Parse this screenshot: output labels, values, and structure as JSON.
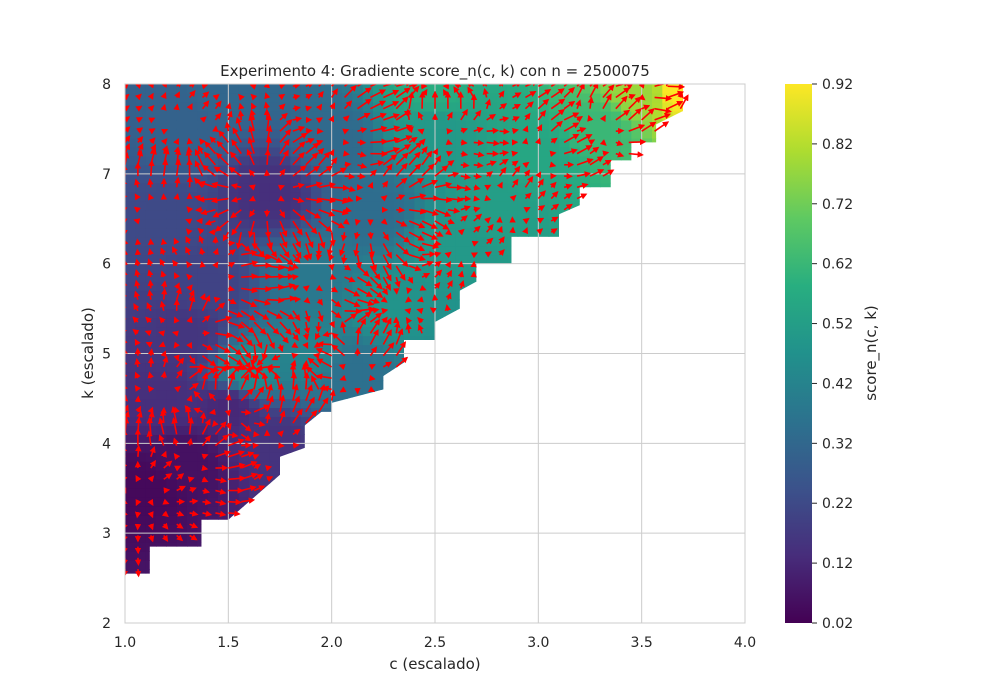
{
  "chart_data": {
    "type": "heatmap",
    "title": "Experimento 4: Gradiente score_n(c, k) con n = 2500075",
    "xlabel": "c (escalado)",
    "ylabel": "k (escalado)",
    "colorbar_label": "score_n(c, k)",
    "colormap": "viridis",
    "xlim": [
      1.0,
      4.0
    ],
    "ylim": [
      2,
      8
    ],
    "x_ticks": [
      "1.0",
      "1.5",
      "2.0",
      "2.5",
      "3.0",
      "3.5",
      "4.0"
    ],
    "y_ticks": [
      "2",
      "3",
      "4",
      "5",
      "6",
      "7",
      "8"
    ],
    "colorbar_range": [
      0.02,
      0.92
    ],
    "colorbar_ticks": [
      "0.02",
      "0.12",
      "0.22",
      "0.32",
      "0.42",
      "0.52",
      "0.62",
      "0.72",
      "0.82",
      "0.92"
    ],
    "grid": true,
    "arrow_color": "#ff0000",
    "region_boundary_c_vs_k": [
      [
        1.0,
        2.55
      ],
      [
        1.12,
        2.55
      ],
      [
        1.12,
        2.85
      ],
      [
        1.37,
        2.85
      ],
      [
        1.37,
        3.15
      ],
      [
        1.5,
        3.15
      ],
      [
        1.75,
        3.65
      ],
      [
        1.75,
        3.85
      ],
      [
        1.87,
        3.95
      ],
      [
        1.87,
        4.2
      ],
      [
        1.95,
        4.35
      ],
      [
        2.0,
        4.35
      ],
      [
        2.0,
        4.45
      ],
      [
        2.25,
        4.6
      ],
      [
        2.25,
        4.75
      ],
      [
        2.35,
        4.9
      ],
      [
        2.35,
        5.15
      ],
      [
        2.5,
        5.15
      ],
      [
        2.5,
        5.35
      ],
      [
        2.62,
        5.5
      ],
      [
        2.62,
        5.7
      ],
      [
        2.7,
        5.8
      ],
      [
        2.7,
        6.0
      ],
      [
        2.87,
        6.0
      ],
      [
        2.87,
        6.3
      ],
      [
        3.1,
        6.3
      ],
      [
        3.1,
        6.55
      ],
      [
        3.2,
        6.65
      ],
      [
        3.2,
        6.85
      ],
      [
        3.35,
        6.85
      ],
      [
        3.35,
        7.15
      ],
      [
        3.45,
        7.15
      ],
      [
        3.45,
        7.35
      ],
      [
        3.57,
        7.35
      ],
      [
        3.57,
        7.55
      ],
      [
        3.7,
        7.7
      ],
      [
        3.7,
        8.0
      ],
      [
        1.0,
        8.0
      ]
    ],
    "score_samples": [
      {
        "c": 1.1,
        "k": 3.5,
        "score": 0.04
      },
      {
        "c": 1.3,
        "k": 3.8,
        "score": 0.06
      },
      {
        "c": 1.2,
        "k": 4.5,
        "score": 0.14
      },
      {
        "c": 1.5,
        "k": 4.4,
        "score": 0.12
      },
      {
        "c": 1.7,
        "k": 4.0,
        "score": 0.15
      },
      {
        "c": 1.6,
        "k": 4.8,
        "score": 0.45
      },
      {
        "c": 1.3,
        "k": 5.2,
        "score": 0.16
      },
      {
        "c": 1.9,
        "k": 5.0,
        "score": 0.42
      },
      {
        "c": 2.1,
        "k": 4.8,
        "score": 0.35
      },
      {
        "c": 1.4,
        "k": 5.8,
        "score": 0.2
      },
      {
        "c": 1.9,
        "k": 5.9,
        "score": 0.38
      },
      {
        "c": 2.3,
        "k": 5.5,
        "score": 0.48
      },
      {
        "c": 1.2,
        "k": 6.5,
        "score": 0.22
      },
      {
        "c": 1.7,
        "k": 6.8,
        "score": 0.14
      },
      {
        "c": 2.2,
        "k": 6.6,
        "score": 0.34
      },
      {
        "c": 2.6,
        "k": 6.2,
        "score": 0.5
      },
      {
        "c": 2.8,
        "k": 6.6,
        "score": 0.52
      },
      {
        "c": 1.3,
        "k": 7.5,
        "score": 0.3
      },
      {
        "c": 2.0,
        "k": 7.4,
        "score": 0.33
      },
      {
        "c": 2.5,
        "k": 7.5,
        "score": 0.5
      },
      {
        "c": 3.0,
        "k": 7.2,
        "score": 0.55
      },
      {
        "c": 3.3,
        "k": 7.5,
        "score": 0.62
      },
      {
        "c": 1.5,
        "k": 7.95,
        "score": 0.32
      },
      {
        "c": 2.5,
        "k": 7.95,
        "score": 0.58
      },
      {
        "c": 3.5,
        "k": 7.9,
        "score": 0.78
      },
      {
        "c": 3.68,
        "k": 7.95,
        "score": 0.92
      }
    ]
  }
}
